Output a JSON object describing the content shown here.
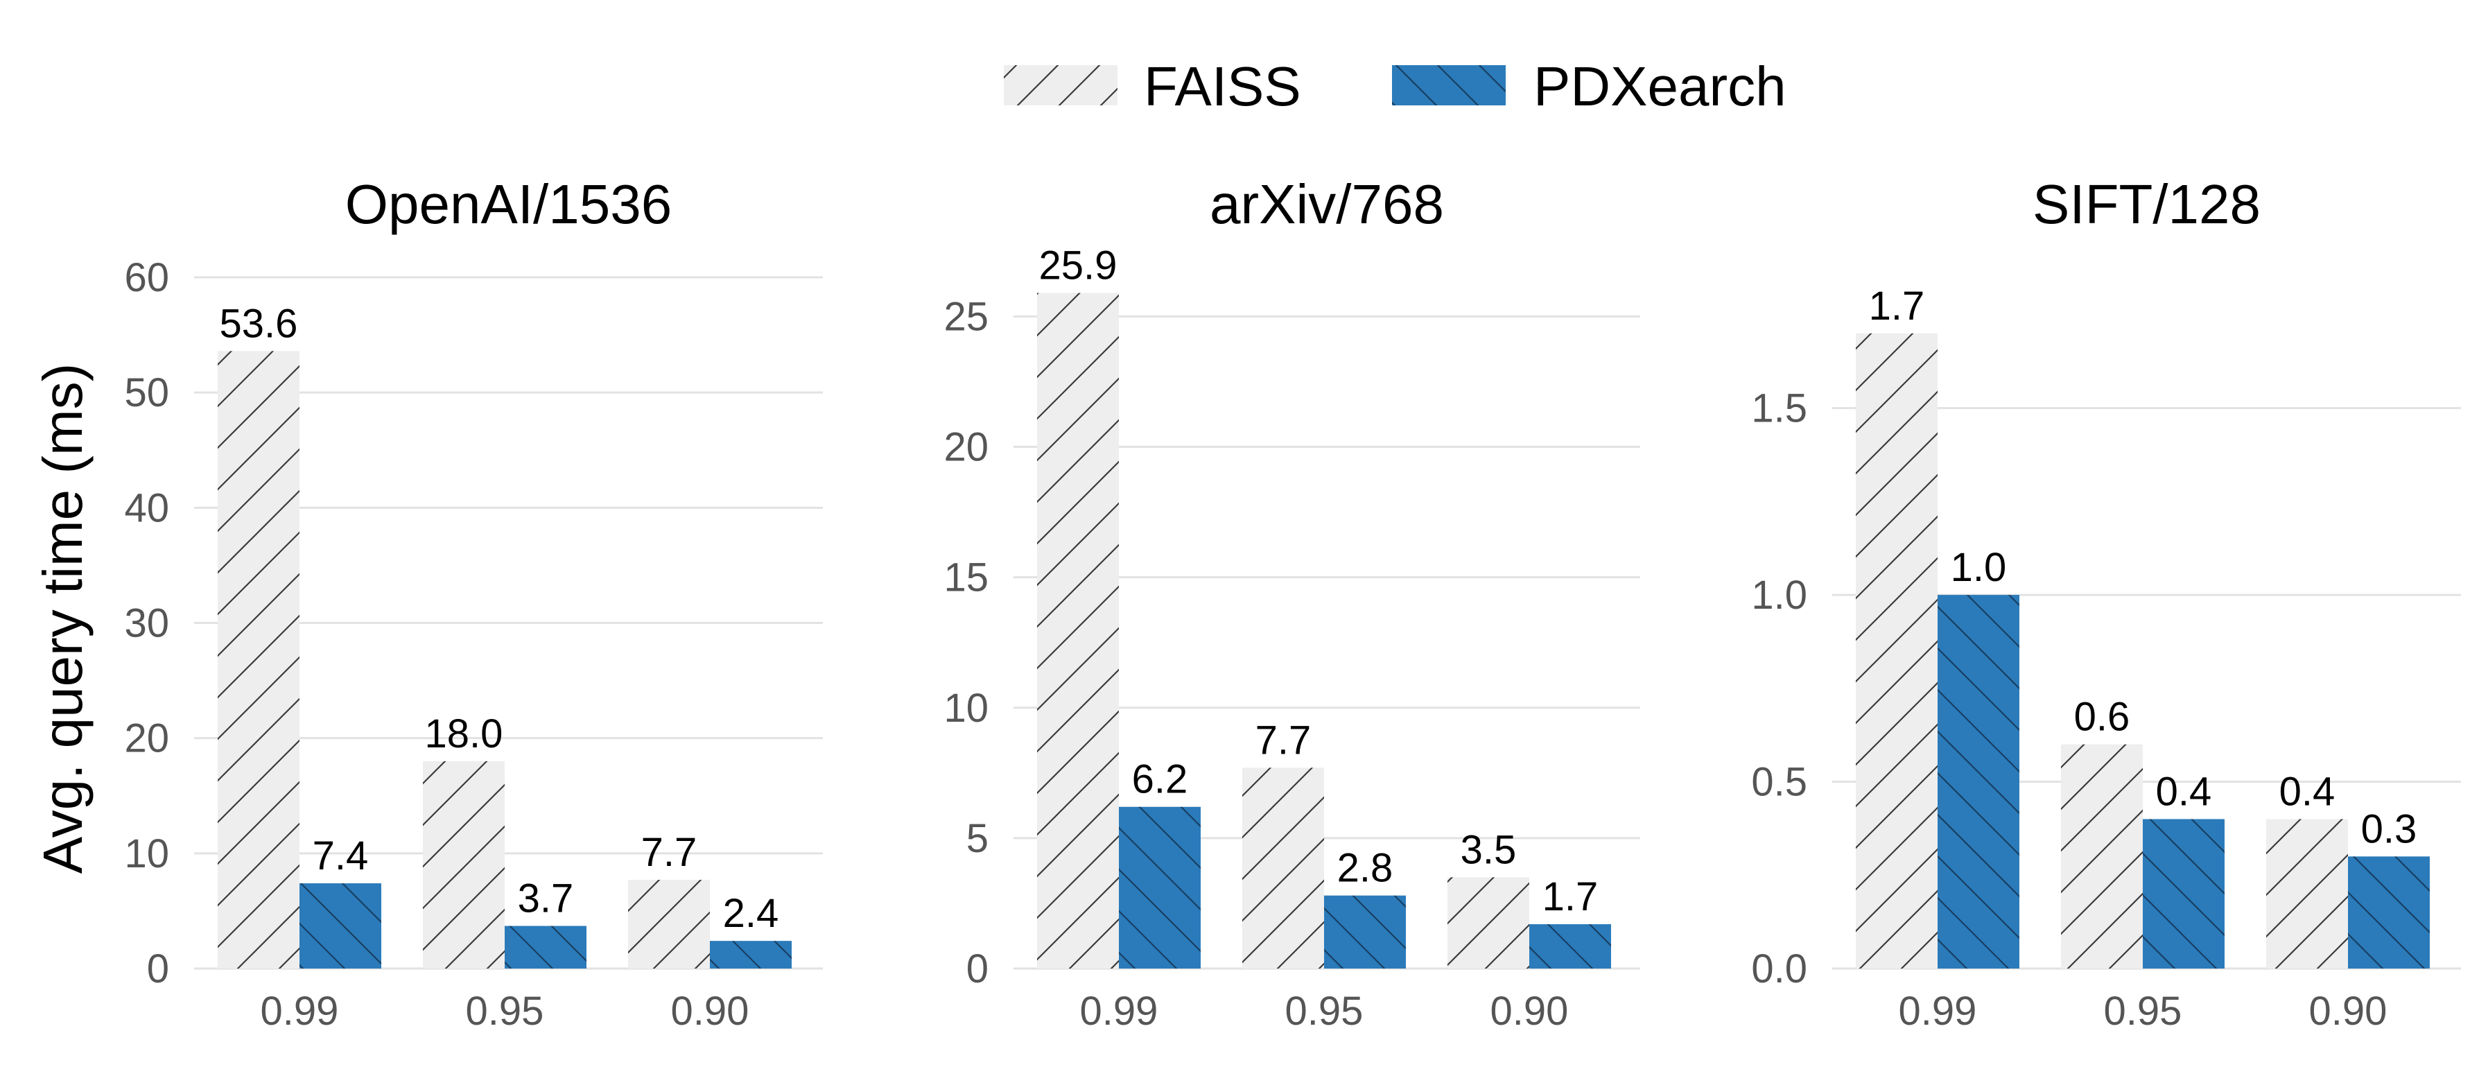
{
  "legend": {
    "placement": "top-center",
    "items": [
      {
        "label": "FAISS",
        "color": "#eeeeee",
        "hatch": "forward"
      },
      {
        "label": "PDXearch",
        "color": "#2b7bba",
        "hatch": "backward"
      }
    ]
  },
  "ylabel": "Avg. query time (ms)",
  "colors": {
    "faiss": "#eeeeee",
    "pdxearch": "#2b7bba",
    "grid": "#e2e2e2"
  },
  "chart_data": [
    {
      "type": "bar",
      "title": "OpenAI/1536",
      "xlabel": "",
      "ylabel": "Avg. query time (ms)",
      "categories": [
        "0.99",
        "0.95",
        "0.90"
      ],
      "series": [
        {
          "name": "FAISS",
          "values": [
            53.6,
            18.0,
            7.7
          ],
          "labels": [
            "53.6",
            "18.0",
            "7.7"
          ]
        },
        {
          "name": "PDXearch",
          "values": [
            7.4,
            3.7,
            2.4
          ],
          "labels": [
            "7.4",
            "3.7",
            "2.4"
          ]
        }
      ],
      "ylim": [
        0,
        60
      ],
      "yticks": [
        0,
        10,
        20,
        30,
        40,
        50,
        60
      ],
      "ytick_labels": [
        "0",
        "10",
        "20",
        "30",
        "40",
        "50",
        "60"
      ],
      "grid": true
    },
    {
      "type": "bar",
      "title": "arXiv/768",
      "xlabel": "",
      "ylabel": "",
      "categories": [
        "0.99",
        "0.95",
        "0.90"
      ],
      "series": [
        {
          "name": "FAISS",
          "values": [
            25.9,
            7.7,
            3.5
          ],
          "labels": [
            "25.9",
            "7.7",
            "3.5"
          ]
        },
        {
          "name": "PDXearch",
          "values": [
            6.2,
            2.8,
            1.7
          ],
          "labels": [
            "6.2",
            "2.8",
            "1.7"
          ]
        }
      ],
      "ylim": [
        0,
        26.5
      ],
      "yticks": [
        0,
        5,
        10,
        15,
        20,
        25
      ],
      "ytick_labels": [
        "0",
        "5",
        "10",
        "15",
        "20",
        "25"
      ],
      "grid": true
    },
    {
      "type": "bar",
      "title": "SIFT/128",
      "xlabel": "",
      "ylabel": "",
      "categories": [
        "0.99",
        "0.95",
        "0.90"
      ],
      "series": [
        {
          "name": "FAISS",
          "values": [
            1.7,
            0.6,
            0.4
          ],
          "labels": [
            "1.7",
            "0.6",
            "0.4"
          ]
        },
        {
          "name": "PDXearch",
          "values": [
            1.0,
            0.4,
            0.3
          ],
          "labels": [
            "1.0",
            "0.4",
            "0.3"
          ]
        }
      ],
      "ylim": [
        0,
        1.85
      ],
      "yticks": [
        0.0,
        0.5,
        1.0,
        1.5
      ],
      "ytick_labels": [
        "0.0",
        "0.5",
        "1.0",
        "1.5"
      ],
      "grid": true
    }
  ]
}
